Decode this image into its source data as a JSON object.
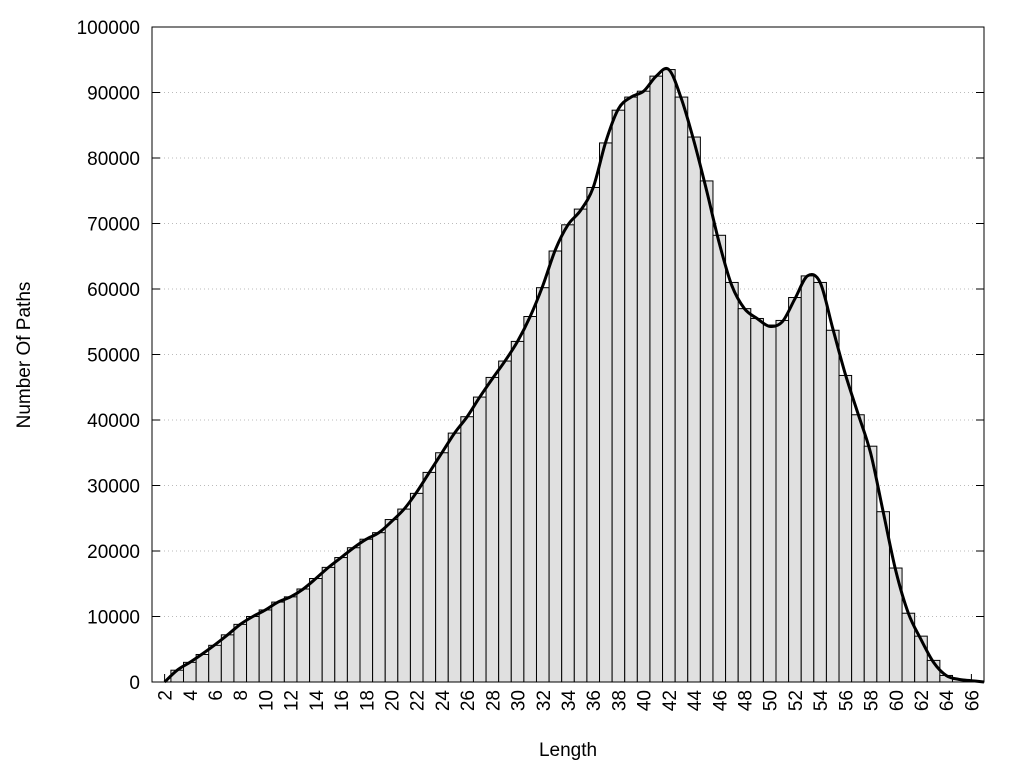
{
  "chart_data": {
    "type": "histogram",
    "xlabel": "Length",
    "ylabel": "Number Of Paths",
    "bins": [
      2.5,
      3.5,
      4.5,
      5.5,
      6.5,
      7.5,
      8.5,
      9.5,
      10.5,
      11.5,
      12.5,
      13.5,
      14.5,
      15.5,
      16.5,
      17.5,
      18.5,
      19.5,
      20.5,
      21.5,
      22.5,
      23.5,
      24.5,
      25.5,
      26.5,
      27.5,
      28.5,
      29.5,
      30.5,
      31.5,
      32.5,
      33.5,
      34.5,
      35.5,
      36.5,
      37.5,
      38.5,
      39.5,
      40.5,
      41.5,
      42.5,
      43.5,
      44.5,
      45.5,
      46.5,
      47.5,
      48.5,
      49.5,
      50.5,
      51.5,
      52.5,
      53.5,
      54.5,
      55.5,
      56.5,
      57.5,
      58.5,
      59.5,
      60.5,
      61.5,
      62.5,
      63.5,
      64.5,
      65.5,
      66.5
    ],
    "values": [
      1800,
      3000,
      4200,
      5600,
      7200,
      8800,
      10000,
      11000,
      12200,
      13000,
      14200,
      15800,
      17500,
      19000,
      20500,
      21800,
      22800,
      24800,
      26400,
      28800,
      32000,
      35000,
      38000,
      40500,
      43500,
      46500,
      49000,
      52000,
      55800,
      60200,
      65800,
      69800,
      72200,
      75500,
      82300,
      87300,
      89300,
      90200,
      92500,
      93500,
      89300,
      83200,
      76500,
      68200,
      61000,
      57000,
      55500,
      54500,
      55200,
      58700,
      62000,
      61000,
      53700,
      46800,
      40800,
      36000,
      26000,
      17400,
      10500,
      7000,
      3300,
      1000,
      400,
      200
    ],
    "color": "#e0e0e0",
    "curve": {
      "x": [
        2,
        3,
        4,
        5,
        6,
        7,
        8,
        9,
        10,
        11,
        12,
        13,
        14,
        15,
        16,
        17,
        18,
        19,
        20,
        21,
        22,
        23,
        24,
        25,
        26,
        27,
        28,
        29,
        30,
        31,
        32,
        33,
        34,
        35,
        36,
        37,
        38,
        39,
        40,
        41,
        42,
        43,
        44,
        45,
        46,
        47,
        48,
        49,
        50,
        51,
        52,
        53,
        54,
        55,
        56,
        57,
        58,
        59,
        60,
        61,
        62,
        63,
        64,
        65,
        66,
        67
      ],
      "values": [
        0,
        1800,
        3000,
        4300,
        5700,
        7200,
        8800,
        10000,
        11000,
        12200,
        13000,
        14200,
        15800,
        17500,
        19000,
        20500,
        21800,
        22800,
        24500,
        26400,
        29000,
        32000,
        35000,
        38000,
        40500,
        43500,
        46300,
        49000,
        52000,
        55800,
        60500,
        66000,
        69800,
        72000,
        75500,
        82500,
        87500,
        89300,
        90200,
        92500,
        93500,
        89000,
        82500,
        75000,
        67000,
        60500,
        57000,
        55500,
        54300,
        55000,
        58500,
        62000,
        61000,
        54000,
        47000,
        41000,
        35000,
        26000,
        17000,
        10500,
        6500,
        3000,
        1000,
        400,
        200,
        0
      ],
      "color": "#000000"
    },
    "xlim": [
      1,
      67
    ],
    "xticks": [
      2,
      4,
      6,
      8,
      10,
      12,
      14,
      16,
      18,
      20,
      22,
      24,
      26,
      28,
      30,
      32,
      34,
      36,
      38,
      40,
      42,
      44,
      46,
      48,
      50,
      52,
      54,
      56,
      58,
      60,
      62,
      64,
      66
    ],
    "ylim": [
      0,
      100000
    ],
    "yticks": [
      0,
      10000,
      20000,
      30000,
      40000,
      50000,
      60000,
      70000,
      80000,
      90000,
      100000
    ],
    "grid": true
  }
}
